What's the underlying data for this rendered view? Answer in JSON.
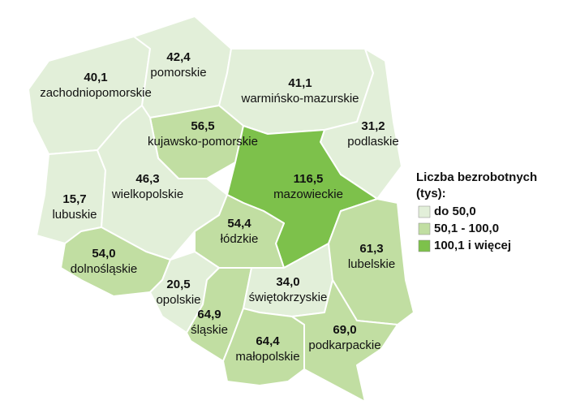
{
  "regions": [
    {
      "name": "zachodniopomorskie",
      "value": 40.1,
      "value_label": "40,1",
      "color": "#e2efd9"
    },
    {
      "name": "pomorskie",
      "value": 42.4,
      "value_label": "42,4",
      "color": "#e2efd9"
    },
    {
      "name": "warmińsko-mazurskie",
      "value": 41.1,
      "value_label": "41,1",
      "color": "#e2efd9"
    },
    {
      "name": "podlaskie",
      "value": 31.2,
      "value_label": "31,2",
      "color": "#e2efd9"
    },
    {
      "name": "kujawsko-pomorskie",
      "value": 56.5,
      "value_label": "56,5",
      "color": "#c1dea2"
    },
    {
      "name": "mazowieckie",
      "value": 116.5,
      "value_label": "116,5",
      "color": "#7dc14b"
    },
    {
      "name": "lubuskie",
      "value": 15.7,
      "value_label": "15,7",
      "color": "#e2efd9"
    },
    {
      "name": "wielkopolskie",
      "value": 46.3,
      "value_label": "46,3",
      "color": "#e2efd9"
    },
    {
      "name": "łódzkie",
      "value": 54.4,
      "value_label": "54,4",
      "color": "#c1dea2"
    },
    {
      "name": "dolnośląskie",
      "value": 54.0,
      "value_label": "54,0",
      "color": "#c1dea2"
    },
    {
      "name": "opolskie",
      "value": 20.5,
      "value_label": "20,5",
      "color": "#e2efd9"
    },
    {
      "name": "śląskie",
      "value": 64.9,
      "value_label": "64,9",
      "color": "#c1dea2"
    },
    {
      "name": "świętokrzyskie",
      "value": 34.0,
      "value_label": "34,0",
      "color": "#e2efd9"
    },
    {
      "name": "lubelskie",
      "value": 61.3,
      "value_label": "61,3",
      "color": "#c1dea2"
    },
    {
      "name": "małopolskie",
      "value": 64.4,
      "value_label": "64,4",
      "color": "#c1dea2"
    },
    {
      "name": "podkarpackie",
      "value": 69.0,
      "value_label": "69,0",
      "color": "#c1dea2"
    }
  ],
  "legend": {
    "title": [
      "Liczba bezrobotnych",
      "(tys):"
    ],
    "items": [
      {
        "label": "do 50,0",
        "color": "#e2efd9"
      },
      {
        "label": "50,1 - 100,0",
        "color": "#c1dea2"
      },
      {
        "label": "100,1 i więcej",
        "color": "#7dc14b"
      }
    ]
  }
}
